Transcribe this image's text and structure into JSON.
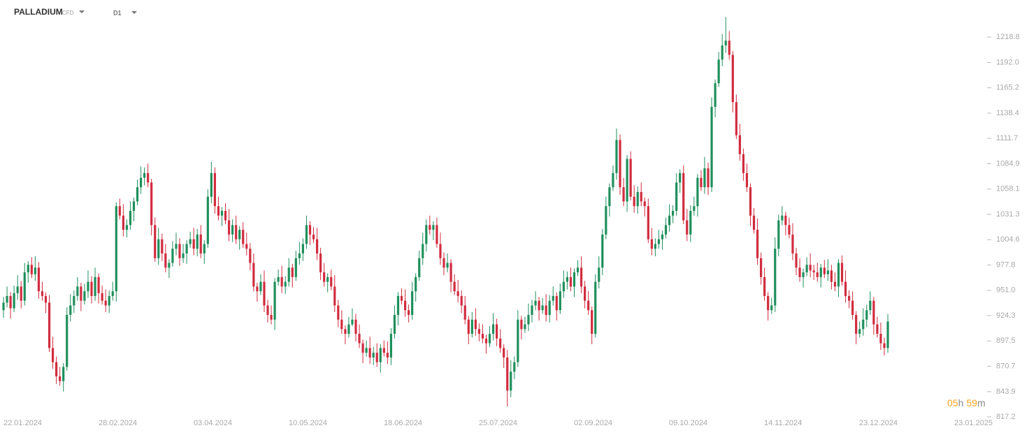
{
  "chart_data": {
    "type": "candlestick",
    "title": "PALLADIUM",
    "instrument_type": "CFD",
    "timeframe": "D1",
    "countdown": [
      "05",
      "h",
      "59",
      "m"
    ],
    "up_color": "#1e8f5c",
    "down_color": "#d12c3f",
    "ylim": [
      815,
      1258
    ],
    "yticks": [
      1218.8,
      {
        "value": 1192.0,
        "label": "1192.0"
      },
      1165.2,
      1138.4,
      1111.7,
      1084.9,
      1058.1,
      1031.3,
      1004.6,
      977.8,
      {
        "value": 951.0,
        "label": "951.0"
      },
      924.3,
      897.5,
      870.7,
      843.9,
      817.2
    ],
    "xticks": [
      "22.01.2024",
      "28.02.2024",
      "03.04.2024",
      "10.05.2024",
      "18.06.2024",
      "25.07.2024",
      "02.09.2024",
      "09.10.2024",
      "14.11.2024",
      "23.12.2024",
      "23.01.2025"
    ],
    "ohlc": [
      [
        930,
        944,
        922,
        938
      ],
      [
        938,
        955,
        933,
        945
      ],
      [
        945,
        949,
        921,
        932
      ],
      [
        932,
        956,
        928,
        948
      ],
      [
        948,
        967,
        941,
        955
      ],
      [
        955,
        961,
        932,
        940
      ],
      [
        940,
        980,
        935,
        970
      ],
      [
        970,
        982,
        959,
        978
      ],
      [
        978,
        986,
        964,
        968
      ],
      [
        968,
        987,
        961,
        975
      ],
      [
        975,
        981,
        942,
        950
      ],
      [
        950,
        960,
        940,
        945
      ],
      [
        945,
        949,
        927,
        938
      ],
      [
        938,
        946,
        886,
        890
      ],
      [
        890,
        902,
        868,
        875
      ],
      [
        875,
        881,
        852,
        860
      ],
      [
        860,
        870,
        850,
        855
      ],
      [
        855,
        874,
        844,
        870
      ],
      [
        870,
        933,
        866,
        925
      ],
      [
        925,
        947,
        918,
        935
      ],
      [
        935,
        951,
        927,
        945
      ],
      [
        945,
        965,
        940,
        955
      ],
      [
        955,
        959,
        929,
        940
      ],
      [
        940,
        958,
        936,
        950
      ],
      [
        950,
        972,
        943,
        960
      ],
      [
        960,
        966,
        937,
        945
      ],
      [
        945,
        975,
        940,
        965
      ],
      [
        965,
        969,
        937,
        948
      ],
      [
        948,
        956,
        936,
        940
      ],
      [
        940,
        952,
        928,
        935
      ],
      [
        935,
        951,
        927,
        945
      ],
      [
        945,
        960,
        940,
        950
      ],
      [
        950,
        1044,
        939,
        1040
      ],
      [
        1040,
        1048,
        1026,
        1030
      ],
      [
        1030,
        1042,
        1008,
        1015
      ],
      [
        1015,
        1026,
        1007,
        1020
      ],
      [
        1020,
        1045,
        1015,
        1035
      ],
      [
        1035,
        1049,
        1024,
        1045
      ],
      [
        1045,
        1068,
        1041,
        1060
      ],
      [
        1060,
        1082,
        1053,
        1070
      ],
      [
        1070,
        1081,
        1062,
        1075
      ],
      [
        1075,
        1085,
        1060,
        1065
      ],
      [
        1065,
        1069,
        1009,
        1020
      ],
      [
        1020,
        1028,
        981,
        985
      ],
      [
        985,
        1017,
        978,
        1005
      ],
      [
        1005,
        1011,
        982,
        990
      ],
      [
        990,
        1000,
        970,
        975
      ],
      [
        975,
        984,
        964,
        980
      ],
      [
        980,
        1003,
        976,
        995
      ],
      [
        995,
        1012,
        988,
        1000
      ],
      [
        1000,
        1006,
        977,
        985
      ],
      [
        985,
        1000,
        980,
        990
      ],
      [
        990,
        1004,
        979,
        1000
      ],
      [
        1000,
        1013,
        996,
        1005
      ],
      [
        1005,
        1017,
        988,
        995
      ],
      [
        995,
        1016,
        987,
        1010
      ],
      [
        1010,
        1020,
        985,
        990
      ],
      [
        990,
        1004,
        979,
        1000
      ],
      [
        1000,
        1058,
        996,
        1050
      ],
      [
        1050,
        1087,
        1043,
        1075
      ],
      [
        1075,
        1081,
        1032,
        1040
      ],
      [
        1040,
        1050,
        1025,
        1030
      ],
      [
        1030,
        1039,
        1019,
        1035
      ],
      [
        1035,
        1043,
        1021,
        1025
      ],
      [
        1025,
        1037,
        1003,
        1010
      ],
      [
        1010,
        1026,
        1002,
        1020
      ],
      [
        1020,
        1030,
        1000,
        1005
      ],
      [
        1005,
        1019,
        994,
        1015
      ],
      [
        1015,
        1023,
        996,
        1000
      ],
      [
        1000,
        1012,
        988,
        995
      ],
      [
        995,
        1001,
        972,
        980
      ],
      [
        980,
        990,
        950,
        955
      ],
      [
        955,
        959,
        939,
        950
      ],
      [
        950,
        968,
        946,
        960
      ],
      [
        960,
        972,
        928,
        935
      ],
      [
        935,
        941,
        917,
        925
      ],
      [
        925,
        935,
        915,
        920
      ],
      [
        920,
        964,
        909,
        960
      ],
      [
        960,
        973,
        956,
        965
      ],
      [
        965,
        977,
        948,
        955
      ],
      [
        955,
        966,
        947,
        960
      ],
      [
        960,
        985,
        955,
        975
      ],
      [
        975,
        979,
        954,
        965
      ],
      [
        965,
        993,
        961,
        985
      ],
      [
        985,
        1002,
        978,
        990
      ],
      [
        990,
        1006,
        982,
        1000
      ],
      [
        1000,
        1030,
        995,
        1020
      ],
      [
        1020,
        1024,
        999,
        1010
      ],
      [
        1010,
        1018,
        1001,
        1005
      ],
      [
        1005,
        1017,
        983,
        990
      ],
      [
        990,
        996,
        962,
        970
      ],
      [
        970,
        980,
        955,
        960
      ],
      [
        960,
        969,
        949,
        965
      ],
      [
        965,
        973,
        951,
        955
      ],
      [
        955,
        967,
        928,
        935
      ],
      [
        935,
        941,
        912,
        920
      ],
      [
        920,
        930,
        905,
        910
      ],
      [
        910,
        914,
        894,
        905
      ],
      [
        905,
        923,
        901,
        915
      ],
      [
        915,
        932,
        913,
        920
      ],
      [
        920,
        926,
        897,
        905
      ],
      [
        905,
        915,
        890,
        895
      ],
      [
        895,
        899,
        874,
        885
      ],
      [
        885,
        898,
        881,
        890
      ],
      [
        890,
        902,
        873,
        880
      ],
      [
        880,
        891,
        872,
        885
      ],
      [
        885,
        895,
        870,
        875
      ],
      [
        875,
        894,
        864,
        890
      ],
      [
        890,
        898,
        881,
        885
      ],
      [
        885,
        897,
        873,
        880
      ],
      [
        880,
        911,
        872,
        905
      ],
      [
        905,
        935,
        900,
        925
      ],
      [
        925,
        949,
        914,
        945
      ],
      [
        945,
        953,
        936,
        940
      ],
      [
        940,
        952,
        923,
        930
      ],
      [
        930,
        936,
        917,
        925
      ],
      [
        925,
        960,
        920,
        950
      ],
      [
        950,
        969,
        939,
        965
      ],
      [
        965,
        993,
        961,
        985
      ],
      [
        985,
        1012,
        978,
        1000
      ],
      [
        1000,
        1026,
        992,
        1020
      ],
      [
        1020,
        1030,
        1010,
        1015
      ],
      [
        1015,
        1024,
        1004,
        1020
      ],
      [
        1020,
        1028,
        996,
        1000
      ],
      [
        1000,
        1012,
        978,
        985
      ],
      [
        985,
        991,
        967,
        975
      ],
      [
        975,
        990,
        970,
        980
      ],
      [
        980,
        984,
        949,
        960
      ],
      [
        960,
        968,
        946,
        950
      ],
      [
        950,
        962,
        938,
        945
      ],
      [
        945,
        951,
        927,
        935
      ],
      [
        935,
        945,
        915,
        920
      ],
      [
        920,
        924,
        894,
        905
      ],
      [
        905,
        928,
        901,
        920
      ],
      [
        920,
        932,
        903,
        910
      ],
      [
        910,
        916,
        897,
        905
      ],
      [
        905,
        915,
        895,
        900
      ],
      [
        900,
        904,
        884,
        895
      ],
      [
        895,
        913,
        891,
        905
      ],
      [
        905,
        927,
        898,
        915
      ],
      [
        915,
        921,
        892,
        900
      ],
      [
        900,
        910,
        885,
        890
      ],
      [
        890,
        894,
        869,
        880
      ],
      [
        880,
        888,
        828,
        845
      ],
      [
        845,
        877,
        838,
        865
      ],
      [
        865,
        881,
        857,
        875
      ],
      [
        875,
        930,
        870,
        920
      ],
      [
        920,
        924,
        899,
        910
      ],
      [
        910,
        923,
        906,
        915
      ],
      [
        915,
        937,
        908,
        925
      ],
      [
        925,
        941,
        917,
        935
      ],
      [
        935,
        950,
        930,
        940
      ],
      [
        940,
        944,
        919,
        930
      ],
      [
        930,
        943,
        926,
        935
      ],
      [
        935,
        947,
        918,
        925
      ],
      [
        925,
        946,
        917,
        940
      ],
      [
        940,
        955,
        935,
        945
      ],
      [
        945,
        949,
        919,
        930
      ],
      [
        930,
        958,
        926,
        950
      ],
      [
        950,
        972,
        943,
        960
      ],
      [
        960,
        971,
        952,
        965
      ],
      [
        965,
        975,
        950,
        955
      ],
      [
        955,
        974,
        944,
        970
      ],
      [
        970,
        983,
        966,
        975
      ],
      [
        975,
        987,
        948,
        955
      ],
      [
        955,
        961,
        932,
        940
      ],
      [
        940,
        950,
        925,
        930
      ],
      [
        930,
        934,
        894,
        905
      ],
      [
        905,
        968,
        901,
        960
      ],
      [
        960,
        987,
        953,
        975
      ],
      [
        975,
        1016,
        967,
        1010
      ],
      [
        1010,
        1050,
        1005,
        1040
      ],
      [
        1040,
        1064,
        1029,
        1060
      ],
      [
        1060,
        1083,
        1056,
        1075
      ],
      [
        1075,
        1122,
        1068,
        1110
      ],
      [
        1110,
        1116,
        1052,
        1060
      ],
      [
        1060,
        1070,
        1040,
        1045
      ],
      [
        1045,
        1094,
        1034,
        1090
      ],
      [
        1090,
        1098,
        1046,
        1050
      ],
      [
        1050,
        1062,
        1033,
        1040
      ],
      [
        1040,
        1061,
        1032,
        1055
      ],
      [
        1055,
        1065,
        1040,
        1045
      ],
      [
        1045,
        1049,
        1029,
        1040
      ],
      [
        1040,
        1048,
        1001,
        1005
      ],
      [
        1005,
        1017,
        988,
        995
      ],
      [
        995,
        1006,
        987,
        1000
      ],
      [
        1000,
        1015,
        995,
        1005
      ],
      [
        1005,
        1014,
        994,
        1010
      ],
      [
        1010,
        1028,
        1006,
        1020
      ],
      [
        1020,
        1042,
        1013,
        1030
      ],
      [
        1030,
        1041,
        1022,
        1035
      ],
      [
        1035,
        1075,
        1030,
        1065
      ],
      [
        1065,
        1079,
        1054,
        1075
      ],
      [
        1075,
        1083,
        1021,
        1025
      ],
      [
        1025,
        1037,
        1003,
        1010
      ],
      [
        1010,
        1041,
        1002,
        1035
      ],
      [
        1035,
        1050,
        1030,
        1040
      ],
      [
        1040,
        1074,
        1029,
        1070
      ],
      [
        1070,
        1078,
        1056,
        1060
      ],
      [
        1060,
        1092,
        1053,
        1080
      ],
      [
        1080,
        1086,
        1052,
        1060
      ],
      [
        1060,
        1155,
        1055,
        1145
      ],
      [
        1145,
        1174,
        1134,
        1170
      ],
      [
        1170,
        1203,
        1166,
        1195
      ],
      [
        1195,
        1222,
        1188,
        1210
      ],
      [
        1210,
        1240,
        1202,
        1215
      ],
      [
        1215,
        1225,
        1195,
        1200
      ],
      [
        1200,
        1204,
        1139,
        1150
      ],
      [
        1150,
        1158,
        1111,
        1115
      ],
      [
        1115,
        1127,
        1088,
        1095
      ],
      [
        1095,
        1101,
        1067,
        1075
      ],
      [
        1075,
        1085,
        1055,
        1060
      ],
      [
        1060,
        1064,
        1019,
        1030
      ],
      [
        1030,
        1038,
        1011,
        1015
      ],
      [
        1015,
        1027,
        978,
        985
      ],
      [
        985,
        991,
        957,
        965
      ],
      [
        965,
        975,
        940,
        945
      ],
      [
        945,
        949,
        919,
        930
      ],
      [
        930,
        943,
        926,
        935
      ],
      [
        935,
        1007,
        928,
        995
      ],
      [
        995,
        1031,
        987,
        1025
      ],
      [
        1025,
        1040,
        1020,
        1030
      ],
      [
        1030,
        1034,
        1009,
        1020
      ],
      [
        1020,
        1028,
        1006,
        1010
      ],
      [
        1010,
        1022,
        983,
        990
      ],
      [
        990,
        996,
        967,
        975
      ],
      [
        975,
        985,
        960,
        965
      ],
      [
        965,
        974,
        954,
        970
      ],
      [
        970,
        986,
        966,
        978
      ],
      [
        978,
        990,
        965,
        972
      ],
      [
        972,
        978,
        962,
        970
      ],
      [
        970,
        980,
        960,
        965
      ],
      [
        965,
        979,
        954,
        975
      ],
      [
        975,
        983,
        964,
        968
      ],
      [
        968,
        984,
        961,
        972
      ],
      [
        972,
        978,
        952,
        960
      ],
      [
        960,
        970,
        950,
        955
      ],
      [
        955,
        984,
        944,
        980
      ],
      [
        980,
        988,
        956,
        960
      ],
      [
        960,
        972,
        938,
        945
      ],
      [
        945,
        951,
        932,
        940
      ],
      [
        940,
        950,
        920,
        925
      ],
      [
        925,
        929,
        894,
        905
      ],
      [
        905,
        918,
        901,
        910
      ],
      [
        910,
        932,
        903,
        920
      ],
      [
        920,
        936,
        912,
        930
      ],
      [
        930,
        950,
        925,
        940
      ],
      [
        940,
        944,
        904,
        915
      ],
      [
        915,
        923,
        901,
        905
      ],
      [
        905,
        917,
        888,
        895
      ],
      [
        895,
        901,
        882,
        890
      ],
      [
        890,
        926,
        885,
        918
      ]
    ]
  }
}
